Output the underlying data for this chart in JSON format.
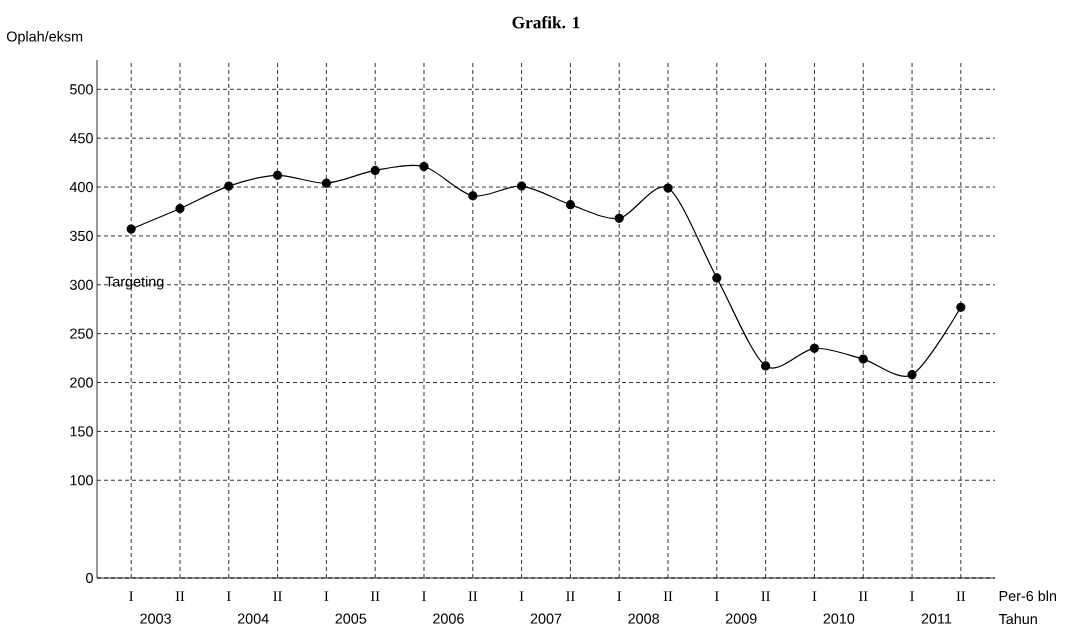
{
  "chart_data": {
    "type": "line",
    "title": "Grafik. 1",
    "ylabel": "Oplah/eksm",
    "xlabel": "Per-6 bln",
    "categories": [
      "I",
      "II",
      "I",
      "II",
      "I",
      "II",
      "I",
      "II",
      "I",
      "II",
      "I",
      "II",
      "I",
      "II",
      "I",
      "II",
      "I",
      "II"
    ],
    "values": [
      357,
      378,
      401,
      412,
      404,
      417,
      421,
      391,
      401,
      382,
      368,
      399,
      307,
      217,
      235,
      224,
      208,
      277
    ],
    "color": "#000000",
    "marker": "circle",
    "line_style": "solid",
    "grid": true,
    "ylim": [
      0,
      530
    ],
    "yticks": [
      0,
      100,
      150,
      200,
      250,
      300,
      350,
      400,
      450,
      500
    ],
    "annotations": [
      "Targeting",
      "2003",
      "2004",
      "2005",
      "2006",
      "2007",
      "2008",
      "2009",
      "2010",
      "2011",
      "Tahun"
    ]
  }
}
